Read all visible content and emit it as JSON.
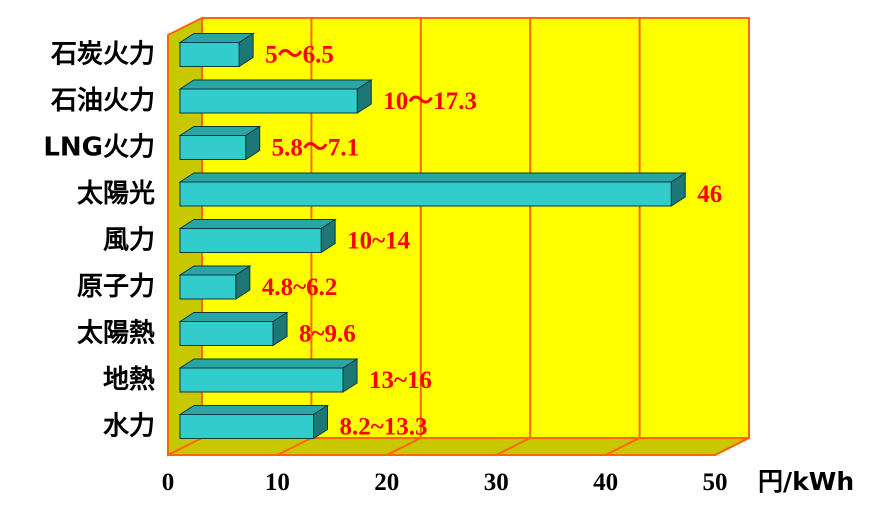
{
  "chart_data": {
    "type": "bar",
    "orientation": "horizontal",
    "style": "3d",
    "categories": [
      "石炭火力",
      "石油火力",
      "LNG火力",
      "太陽光",
      "風力",
      "原子力",
      "太陽熱",
      "地熱",
      "水力"
    ],
    "value_labels": [
      "5～6.5",
      "10～17.3",
      "5.8～7.1",
      "46",
      "10~14",
      "4.8~6.2",
      "8~9.6",
      "13~16",
      "8.2~13.3"
    ],
    "values": [
      6.5,
      17.3,
      7.1,
      46,
      14,
      6.2,
      9.6,
      16,
      13.3
    ],
    "xlim": [
      0,
      50
    ],
    "xticks": [
      "0",
      "10",
      "20",
      "30",
      "40",
      "50"
    ],
    "xlabel": "円/kWh",
    "grid": true,
    "colors": {
      "plot_background": "#ffff00",
      "plot_side": "#c8c800",
      "grid_lines": "#ff6600",
      "bar_front": "#33cccc",
      "bar_top": "#2aa5a5",
      "bar_side": "#1d7777",
      "value_labels": "#ff0000"
    }
  }
}
